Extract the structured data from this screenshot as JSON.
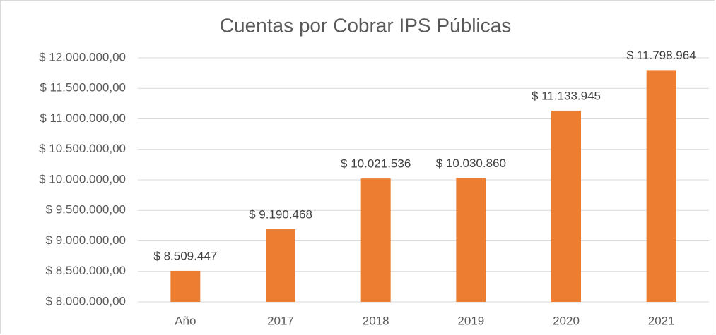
{
  "chart_data": {
    "type": "bar",
    "title": "Cuentas por Cobrar IPS Públicas",
    "categories": [
      "Año",
      "2017",
      "2018",
      "2019",
      "2020",
      "2021"
    ],
    "values": [
      8509447,
      9190468,
      10021536,
      10030860,
      11133945,
      11798964
    ],
    "value_labels": [
      "$ 8.509.447",
      "$ 9.190.468",
      "$ 10.021.536",
      "$ 10.030.860",
      "$ 11.133.945",
      "$ 11.798.964"
    ],
    "color": "#ed7d31",
    "ylim": [
      8000000,
      12000000
    ],
    "yticks": [
      {
        "value": 8000000,
        "label": "$ 8.000.000,00"
      },
      {
        "value": 8500000,
        "label": "$ 8.500.000,00"
      },
      {
        "value": 9000000,
        "label": "$ 9.000.000,00"
      },
      {
        "value": 9500000,
        "label": "$ 9.500.000,00"
      },
      {
        "value": 10000000,
        "label": "$ 10.000.000,00"
      },
      {
        "value": 10500000,
        "label": "$ 10.500.000,00"
      },
      {
        "value": 11000000,
        "label": "$ 11.000.000,00"
      },
      {
        "value": 11500000,
        "label": "$ 11.500.000,00"
      },
      {
        "value": 12000000,
        "label": "$ 12.000.000,00"
      }
    ],
    "grid": true
  }
}
